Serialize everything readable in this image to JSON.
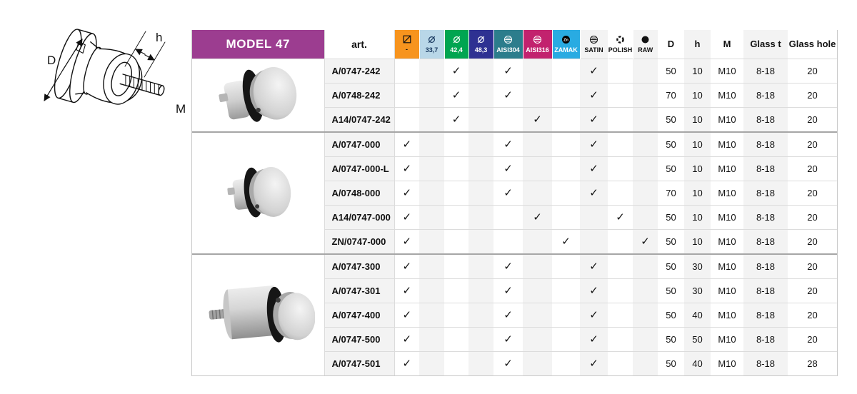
{
  "page": {
    "background": "#ffffff"
  },
  "diagram": {
    "label_d": "D",
    "label_h": "h",
    "label_m": "M"
  },
  "table": {
    "title": "MODEL 47",
    "title_bg": "#9C3D90",
    "art_header": "art.",
    "check_glyph": "✓",
    "columns": [
      {
        "label": "-",
        "icon": "no-tube-icon",
        "bg": "#F7941E",
        "fg": "#111111"
      },
      {
        "label": "33,7",
        "icon": "diameter-icon",
        "bg": "#B9D7E8",
        "fg": "#17375E"
      },
      {
        "label": "42,4",
        "icon": "diameter-icon",
        "bg": "#00A551",
        "fg": "#FFFFFF"
      },
      {
        "label": "48,3",
        "icon": "diameter-icon",
        "bg": "#2E3192",
        "fg": "#FFFFFF"
      },
      {
        "label": "AISI304",
        "icon": "steel-ball-icon",
        "bg": "#2C7D8C",
        "fg": "#FFFFFF"
      },
      {
        "label": "AISI316",
        "icon": "steel-ball-icon",
        "bg": "#C2226E",
        "fg": "#FFFFFF"
      },
      {
        "label": "ZAMAK",
        "icon": "zinc-ball-icon",
        "bg": "#29ABE2",
        "fg": "#FFFFFF"
      },
      {
        "label": "SATIN",
        "icon": "satin-finish-icon",
        "bg": "",
        "fg": "#111111"
      },
      {
        "label": "POLISH",
        "icon": "polish-finish-icon",
        "bg": "",
        "fg": "#111111"
      },
      {
        "label": "RAW",
        "icon": "raw-finish-icon",
        "bg": "",
        "fg": "#111111"
      }
    ],
    "spec_headers": [
      "D",
      "h",
      "M",
      "Glass t",
      "Glass hole"
    ],
    "groups": [
      {
        "rows": [
          {
            "art": "A/0747-242",
            "cells": [
              "",
              "",
              "✓",
              "",
              "✓",
              "",
              "",
              "✓",
              "",
              ""
            ],
            "specs": [
              "50",
              "10",
              "M10",
              "8-18",
              "20"
            ]
          },
          {
            "art": "A/0748-242",
            "cells": [
              "",
              "",
              "✓",
              "",
              "✓",
              "",
              "",
              "✓",
              "",
              ""
            ],
            "specs": [
              "70",
              "10",
              "M10",
              "8-18",
              "20"
            ]
          },
          {
            "art": "A14/0747-242",
            "cells": [
              "",
              "",
              "✓",
              "",
              "",
              "✓",
              "",
              "✓",
              "",
              ""
            ],
            "specs": [
              "50",
              "10",
              "M10",
              "8-18",
              "20"
            ]
          }
        ]
      },
      {
        "rows": [
          {
            "art": "A/0747-000",
            "cells": [
              "✓",
              "",
              "",
              "",
              "✓",
              "",
              "",
              "✓",
              "",
              ""
            ],
            "specs": [
              "50",
              "10",
              "M10",
              "8-18",
              "20"
            ]
          },
          {
            "art": "A/0747-000-L",
            "cells": [
              "✓",
              "",
              "",
              "",
              "✓",
              "",
              "",
              "✓",
              "",
              ""
            ],
            "specs": [
              "50",
              "10",
              "M10",
              "8-18",
              "20"
            ]
          },
          {
            "art": "A/0748-000",
            "cells": [
              "✓",
              "",
              "",
              "",
              "✓",
              "",
              "",
              "✓",
              "",
              ""
            ],
            "specs": [
              "70",
              "10",
              "M10",
              "8-18",
              "20"
            ]
          },
          {
            "art": "A14/0747-000",
            "cells": [
              "✓",
              "",
              "",
              "",
              "",
              "✓",
              "",
              "",
              "✓",
              ""
            ],
            "specs": [
              "50",
              "10",
              "M10",
              "8-18",
              "20"
            ]
          },
          {
            "art": "ZN/0747-000",
            "cells": [
              "✓",
              "",
              "",
              "",
              "",
              "",
              "✓",
              "",
              "",
              "✓"
            ],
            "specs": [
              "50",
              "10",
              "M10",
              "8-18",
              "20"
            ]
          }
        ]
      },
      {
        "rows": [
          {
            "art": "A/0747-300",
            "cells": [
              "✓",
              "",
              "",
              "",
              "✓",
              "",
              "",
              "✓",
              "",
              ""
            ],
            "specs": [
              "50",
              "30",
              "M10",
              "8-18",
              "20"
            ]
          },
          {
            "art": "A/0747-301",
            "cells": [
              "✓",
              "",
              "",
              "",
              "✓",
              "",
              "",
              "✓",
              "",
              ""
            ],
            "specs": [
              "50",
              "30",
              "M10",
              "8-18",
              "20"
            ]
          },
          {
            "art": "A/0747-400",
            "cells": [
              "✓",
              "",
              "",
              "",
              "✓",
              "",
              "",
              "✓",
              "",
              ""
            ],
            "specs": [
              "50",
              "40",
              "M10",
              "8-18",
              "20"
            ]
          },
          {
            "art": "A/0747-500",
            "cells": [
              "✓",
              "",
              "",
              "",
              "✓",
              "",
              "",
              "✓",
              "",
              ""
            ],
            "specs": [
              "50",
              "50",
              "M10",
              "8-18",
              "20"
            ]
          },
          {
            "art": "A/0747-501",
            "cells": [
              "✓",
              "",
              "",
              "",
              "✓",
              "",
              "",
              "✓",
              "",
              ""
            ],
            "specs": [
              "50",
              "40",
              "M10",
              "8-18",
              "28"
            ]
          }
        ]
      }
    ]
  }
}
